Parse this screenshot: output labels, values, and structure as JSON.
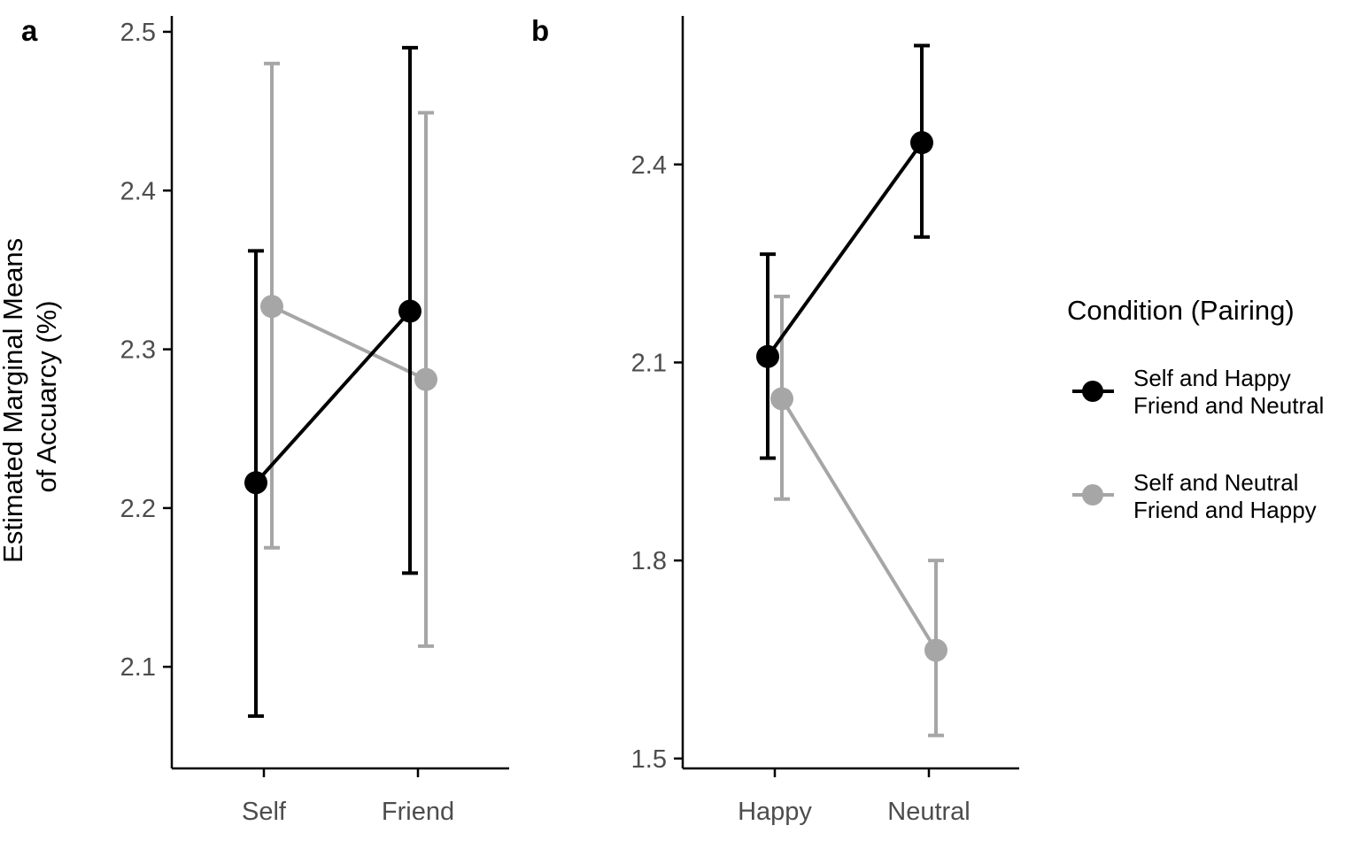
{
  "colors": {
    "series_1": "#000000",
    "series_2": "#a6a6a6",
    "axis": "#000000",
    "tick_label": "#4d4d4d"
  },
  "shared_y_axis_label": [
    "Estimated Marginal Means",
    "of Accuarcy (%)"
  ],
  "legend": {
    "title": "Condition (Pairing)",
    "entries": [
      {
        "line1": "Self and Happy",
        "line2": "Friend and Neutral",
        "color": "#000000"
      },
      {
        "line1": "Self and Neutral",
        "line2": "Friend and Happy",
        "color": "#a6a6a6"
      }
    ]
  },
  "chart_data": [
    {
      "panel": "a",
      "type": "line",
      "categories": [
        "Self",
        "Friend"
      ],
      "xlabel": "",
      "ylabel": "Estimated Marginal Means of Accuarcy (%)",
      "ylim": [
        2.036,
        2.51
      ],
      "yticks": [
        2.1,
        2.2,
        2.3,
        2.4,
        2.5
      ],
      "ytick_labels": [
        "2.1",
        "2.2",
        "2.3",
        "2.4",
        "2.5"
      ],
      "grid": false,
      "series": [
        {
          "values": [
            2.216,
            2.324
          ],
          "lower": [
            2.069,
            2.159
          ],
          "upper": [
            2.362,
            2.49
          ]
        },
        {
          "values": [
            2.327,
            2.281
          ],
          "lower": [
            2.175,
            2.113
          ],
          "upper": [
            2.48,
            2.449
          ]
        }
      ]
    },
    {
      "panel": "b",
      "type": "line",
      "categories": [
        "Happy",
        "Neutral"
      ],
      "xlabel": "",
      "ylabel": "",
      "ylim": [
        1.485,
        2.625
      ],
      "yticks": [
        1.5,
        1.8,
        2.1,
        2.4
      ],
      "ytick_labels": [
        "1.5",
        "1.8",
        "2.1",
        "2.4"
      ],
      "grid": false,
      "series": [
        {
          "values": [
            2.109,
            2.433
          ],
          "lower": [
            1.955,
            2.29
          ],
          "upper": [
            2.264,
            2.58
          ]
        },
        {
          "values": [
            2.045,
            1.664
          ],
          "lower": [
            1.893,
            1.535
          ],
          "upper": [
            2.2,
            1.8
          ]
        }
      ]
    }
  ]
}
